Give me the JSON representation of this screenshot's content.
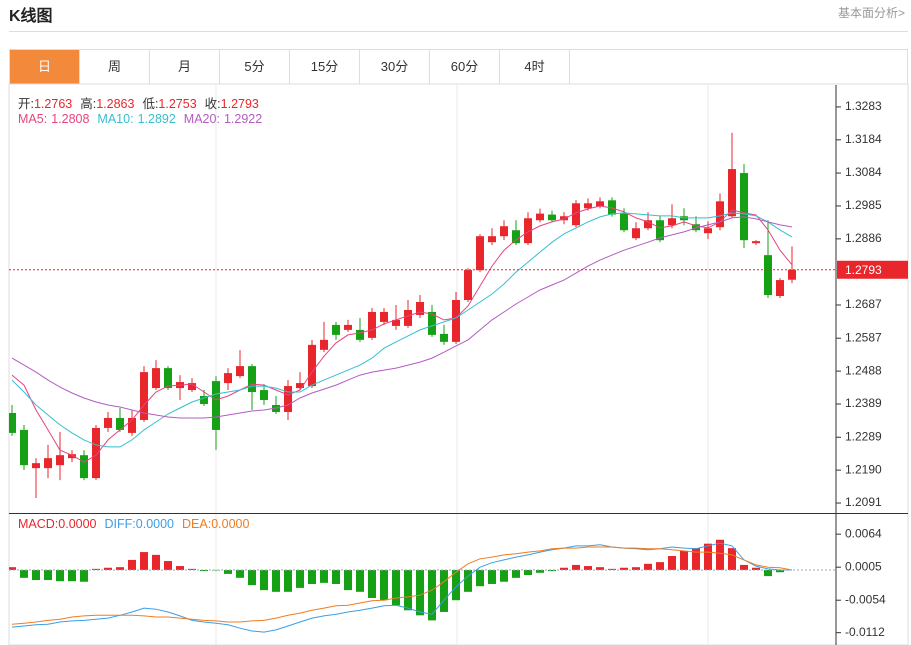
{
  "header": {
    "title": "K线图",
    "link": "基本面分析>"
  },
  "tabs": [
    "日",
    "周",
    "月",
    "5分",
    "15分",
    "30分",
    "60分",
    "4时"
  ],
  "active_tab": "日",
  "chart_data": [
    {
      "type": "candlestick",
      "up_color": "#e8262b",
      "down_color": "#16a016",
      "fields": [
        {
          "label": "开:",
          "value": 1.2763
        },
        {
          "label": "高:",
          "value": 1.2863
        },
        {
          "label": "低:",
          "value": 1.2753
        },
        {
          "label": "收:",
          "value": 1.2793
        }
      ],
      "open": [
        1.2362,
        1.2311,
        1.2196,
        1.2196,
        1.2205,
        1.2226,
        1.2235,
        1.2166,
        1.2317,
        1.2347,
        1.2302,
        1.2341,
        1.2437,
        1.2497,
        1.2437,
        1.2431,
        1.2413,
        1.2458,
        1.2452,
        1.2473,
        1.2503,
        1.2431,
        1.2386,
        1.2365,
        1.2437,
        1.2443,
        1.2552,
        1.2627,
        1.2612,
        1.2612,
        1.2588,
        1.2636,
        1.2624,
        1.2624,
        1.2657,
        1.2666,
        1.26,
        1.2576,
        1.2702,
        1.2792,
        1.2876,
        1.2894,
        1.2912,
        1.2873,
        1.2942,
        1.2959,
        1.2942,
        1.2927,
        1.2978,
        1.2984,
        1.3002,
        1.2962,
        1.2888,
        1.2918,
        1.2942,
        1.2927,
        1.2954,
        1.293,
        1.2903,
        1.2921,
        1.2954,
        1.3084,
        1.2873,
        1.2837,
        1.2714,
        1.2763
      ],
      "high": [
        1.2386,
        1.2326,
        1.2226,
        1.2266,
        1.2305,
        1.225,
        1.225,
        1.2326,
        1.2365,
        1.2377,
        1.2371,
        1.2503,
        1.2521,
        1.2503,
        1.2476,
        1.2467,
        1.2431,
        1.2473,
        1.2497,
        1.2551,
        1.2509,
        1.2449,
        1.2413,
        1.2461,
        1.2485,
        1.2582,
        1.2636,
        1.2636,
        1.2642,
        1.2648,
        1.2678,
        1.2678,
        1.2687,
        1.2702,
        1.2717,
        1.2687,
        1.2627,
        1.2726,
        1.2798,
        1.29,
        1.2918,
        1.2942,
        1.2942,
        1.2966,
        1.2977,
        1.2971,
        1.2966,
        1.3002,
        1.3008,
        1.3011,
        1.3011,
        1.2978,
        1.2936,
        1.2966,
        1.2956,
        1.299,
        1.2978,
        1.2954,
        1.2939,
        1.3023,
        1.3205,
        1.3111,
        1.2882,
        1.2942,
        1.2768,
        1.2863
      ],
      "low": [
        1.2293,
        1.219,
        1.2106,
        1.2166,
        1.216,
        1.2214,
        1.216,
        1.216,
        1.2305,
        1.2305,
        1.2293,
        1.2335,
        1.2431,
        1.2431,
        1.2401,
        1.2425,
        1.2383,
        1.2251,
        1.2431,
        1.2467,
        1.2371,
        1.2386,
        1.2359,
        1.2341,
        1.2431,
        1.2437,
        1.2545,
        1.2582,
        1.2606,
        1.2576,
        1.2582,
        1.2627,
        1.2612,
        1.2618,
        1.2648,
        1.2591,
        1.2567,
        1.257,
        1.2696,
        1.2786,
        1.2867,
        1.2882,
        1.2867,
        1.2867,
        1.2936,
        1.2936,
        1.293,
        1.2921,
        1.2971,
        1.2978,
        1.2953,
        1.2906,
        1.2882,
        1.2912,
        1.2876,
        1.2918,
        1.2927,
        1.2906,
        1.2885,
        1.2912,
        1.2948,
        1.2858,
        1.2867,
        1.2708,
        1.2708,
        1.2753
      ],
      "close": [
        1.2302,
        1.2205,
        1.2211,
        1.2226,
        1.2235,
        1.2238,
        1.2166,
        1.2317,
        1.2347,
        1.2311,
        1.2347,
        1.2485,
        1.2497,
        1.2437,
        1.2455,
        1.2452,
        1.2389,
        1.2311,
        1.2482,
        1.2503,
        1.2425,
        1.2401,
        1.2365,
        1.2443,
        1.2452,
        1.2567,
        1.2582,
        1.2597,
        1.2627,
        1.2582,
        1.2666,
        1.2666,
        1.2642,
        1.2672,
        1.2696,
        1.2597,
        1.2576,
        1.2702,
        1.2792,
        1.2894,
        1.2894,
        1.2924,
        1.2873,
        1.2948,
        1.2962,
        1.2942,
        1.2954,
        1.2993,
        1.2993,
        1.2999,
        1.2959,
        1.2912,
        1.2918,
        1.2942,
        1.2882,
        1.2948,
        1.2942,
        1.2912,
        1.2918,
        1.2999,
        1.3096,
        1.2882,
        1.2879,
        1.2717,
        1.2762,
        1.2793
      ],
      "series": [
        {
          "name": "MA5:",
          "color": "#e8447f",
          "current": 1.2808,
          "values": [
            1.2476,
            1.2446,
            1.2371,
            1.2311,
            1.225,
            1.2235,
            1.2214,
            1.2235,
            1.2281,
            1.2311,
            1.2341,
            1.2386,
            1.2425,
            1.2443,
            1.2446,
            1.2449,
            1.2425,
            1.2401,
            1.2413,
            1.2431,
            1.2449,
            1.2446,
            1.2431,
            1.2416,
            1.2431,
            1.2485,
            1.2533,
            1.2573,
            1.2597,
            1.2603,
            1.2612,
            1.263,
            1.2642,
            1.2654,
            1.2666,
            1.266,
            1.2642,
            1.2648,
            1.2684,
            1.2744,
            1.2804,
            1.2852,
            1.2883,
            1.2907,
            1.2925,
            1.2937,
            1.2946,
            1.2964,
            1.2976,
            1.2985,
            1.2979,
            1.2967,
            1.2949,
            1.2937,
            1.2919,
            1.2925,
            1.2937,
            1.2925,
            1.2919,
            1.2937,
            1.2973,
            1.2964,
            1.2958,
            1.2913,
            1.2852,
            1.2808
          ]
        },
        {
          "name": "MA10:",
          "color": "#35bfd0",
          "current": 1.2892,
          "values": [
            1.2461,
            1.2425,
            1.2386,
            1.2356,
            1.2326,
            1.2302,
            1.2281,
            1.2266,
            1.226,
            1.226,
            1.2281,
            1.2311,
            1.2335,
            1.2359,
            1.2377,
            1.2395,
            1.2407,
            1.2419,
            1.2425,
            1.2431,
            1.2443,
            1.2443,
            1.2437,
            1.2425,
            1.2425,
            1.2446,
            1.2461,
            1.2476,
            1.2491,
            1.2506,
            1.2527,
            1.2557,
            1.2576,
            1.2594,
            1.2612,
            1.2624,
            1.2636,
            1.2648,
            1.2672,
            1.2696,
            1.272,
            1.275,
            1.2786,
            1.2816,
            1.2846,
            1.2876,
            1.2901,
            1.2919,
            1.2937,
            1.2952,
            1.2961,
            1.2964,
            1.2961,
            1.2958,
            1.2955,
            1.2955,
            1.2949,
            1.2949,
            1.2949,
            1.2955,
            1.2964,
            1.2961,
            1.2955,
            1.2937,
            1.2913,
            1.2892
          ]
        },
        {
          "name": "MA20:",
          "color": "#b45cc2",
          "current": 1.2922,
          "values": [
            1.2527,
            1.2506,
            1.2485,
            1.2461,
            1.244,
            1.2422,
            1.2407,
            1.2395,
            1.2386,
            1.238,
            1.2371,
            1.2362,
            1.2356,
            1.235,
            1.2347,
            1.2347,
            1.2347,
            1.235,
            1.2356,
            1.2362,
            1.2368,
            1.2371,
            1.2377,
            1.2386,
            1.2407,
            1.2422,
            1.2434,
            1.2446,
            1.2461,
            1.2476,
            1.2485,
            1.2491,
            1.2497,
            1.2506,
            1.2515,
            1.2527,
            1.2545,
            1.2564,
            1.2582,
            1.2612,
            1.2642,
            1.2666,
            1.269,
            1.2711,
            1.2732,
            1.2747,
            1.2762,
            1.2783,
            1.2804,
            1.2822,
            1.2837,
            1.2852,
            1.2864,
            1.2876,
            1.2889,
            1.2898,
            1.2907,
            1.2919,
            1.2928,
            1.2937,
            1.2949,
            1.2952,
            1.2946,
            1.2937,
            1.2928,
            1.2922
          ]
        }
      ],
      "price_line": 1.2793,
      "price_line_color": "#e8262b",
      "ylim": [
        1.2061,
        1.3349
      ],
      "yticks": [
        1.2091,
        {
          "value": 1.219,
          "label": "1.2190"
        },
        1.2289,
        1.2389,
        1.2488,
        1.2587,
        1.2687,
        1.2886,
        1.2985,
        1.3084,
        1.3184,
        1.3283
      ]
    },
    {
      "type": "macd",
      "macd": {
        "name": "MACD:",
        "current": {
          "value": 0,
          "label": "0.0000"
        },
        "up_color": "#e8262b",
        "down_color": "#16a016",
        "values": [
          0.0005,
          -0.0014,
          -0.0018,
          -0.0018,
          -0.002,
          -0.002,
          -0.0021,
          0.0002,
          0.0004,
          0.0005,
          0.0018,
          0.0032,
          0.0027,
          0.0016,
          0.0007,
          0.0002,
          -0.0002,
          -0.0001,
          -0.0007,
          -0.0014,
          -0.0027,
          -0.0036,
          -0.0039,
          -0.0039,
          -0.0032,
          -0.0025,
          -0.0023,
          -0.0025,
          -0.0036,
          -0.0039,
          -0.005,
          -0.0054,
          -0.0063,
          -0.0072,
          -0.0081,
          -0.009,
          -0.0075,
          -0.0054,
          -0.0039,
          -0.0029,
          -0.0025,
          -0.0021,
          -0.0014,
          -0.0009,
          -0.0005,
          -0.0002,
          0.0004,
          0.0009,
          0.0007,
          0.0005,
          0.0002,
          0.0004,
          0.0005,
          0.0011,
          0.0014,
          0.0025,
          0.0034,
          0.0039,
          0.0047,
          0.0054,
          0.0039,
          0.0009,
          0.0004,
          -0.0011,
          -0.0004,
          0
        ]
      },
      "series": [
        {
          "name": "DIFF:",
          "color": "#3a9ee8",
          "current": {
            "value": 0,
            "label": "0.0000"
          },
          "values": [
            -0.0102,
            -0.01,
            -0.0098,
            -0.0097,
            -0.0093,
            -0.0091,
            -0.009,
            -0.0088,
            -0.0086,
            -0.0081,
            -0.0075,
            -0.0068,
            -0.007,
            -0.0075,
            -0.0082,
            -0.009,
            -0.0093,
            -0.0095,
            -0.0098,
            -0.0104,
            -0.0109,
            -0.0111,
            -0.0107,
            -0.01,
            -0.0093,
            -0.0086,
            -0.0082,
            -0.0079,
            -0.0075,
            -0.0072,
            -0.0068,
            -0.0064,
            -0.0063,
            -0.0068,
            -0.0075,
            -0.0079,
            -0.0054,
            -0.003,
            -0.0011,
            0.0005,
            0.0013,
            0.0018,
            0.0023,
            0.0027,
            0.0032,
            0.0036,
            0.0039,
            0.0043,
            0.0043,
            0.0045,
            0.0041,
            0.0039,
            0.0038,
            0.0036,
            0.0038,
            0.0041,
            0.0039,
            0.0038,
            0.0043,
            0.0048,
            0.0043,
            0.0018,
            0.0007,
            0.0002,
            0,
            0
          ]
        },
        {
          "name": "DEA:",
          "color": "#f07c20",
          "current": {
            "value": 0,
            "label": "0.0000"
          },
          "values": [
            -0.0097,
            -0.0095,
            -0.0093,
            -0.009,
            -0.0088,
            -0.0084,
            -0.0082,
            -0.0081,
            -0.0081,
            -0.0081,
            -0.0081,
            -0.0082,
            -0.0084,
            -0.0084,
            -0.0086,
            -0.0088,
            -0.009,
            -0.0091,
            -0.0093,
            -0.0093,
            -0.0091,
            -0.009,
            -0.0086,
            -0.0081,
            -0.0077,
            -0.0072,
            -0.0068,
            -0.0064,
            -0.0063,
            -0.0059,
            -0.0055,
            -0.0054,
            -0.005,
            -0.0048,
            -0.0045,
            -0.0036,
            -0.0021,
            -0.0004,
            0.0011,
            0.002,
            0.0023,
            0.0027,
            0.0029,
            0.0032,
            0.0034,
            0.0038,
            0.0039,
            0.0039,
            0.0041,
            0.0041,
            0.0041,
            0.0039,
            0.0039,
            0.0038,
            0.0038,
            0.0036,
            0.0034,
            0.0032,
            0.0032,
            0.003,
            0.0027,
            0.0018,
            0.0009,
            0.0005,
            0.0004,
            0
          ]
        }
      ],
      "ylim": [
        -0.0134,
        0.01
      ],
      "yticks": [
        -0.0112,
        -0.0054,
        0.0005,
        0.0064
      ]
    }
  ]
}
